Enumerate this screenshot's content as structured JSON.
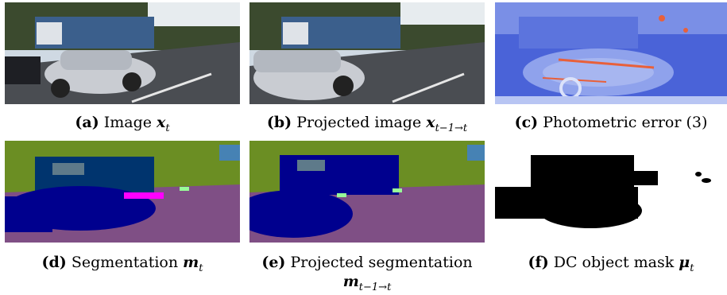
{
  "figure": {
    "panels": [
      {
        "id": "a",
        "tag": "(a)",
        "text": "Image",
        "math": "x",
        "subscript": "t"
      },
      {
        "id": "b",
        "tag": "(b)",
        "text": "Projected image",
        "math": "x",
        "subscript": "t−1→t"
      },
      {
        "id": "c",
        "tag": "(c)",
        "text": "Photometric error (3)",
        "math": "",
        "subscript": ""
      },
      {
        "id": "d",
        "tag": "(d)",
        "text": "Segmentation",
        "math": "m",
        "subscript": "t"
      },
      {
        "id": "e",
        "tag": "(e)",
        "text": "Projected segmentation",
        "math": "m",
        "subscript": "t−1→t"
      },
      {
        "id": "f",
        "tag": "(f)",
        "text": "DC object mask",
        "math": "μ",
        "subscript": "t"
      }
    ]
  },
  "colors": {
    "sky": "#c9d6e2",
    "trees": "#3b4a2e",
    "road": "#4a4d52",
    "truck": "#3b5f8c",
    "car": "#c9ccd2",
    "error_bg": "#4a63d8",
    "error_hot": "#e8603a",
    "seg_vegetation": "#6b8e23",
    "seg_road": "#7f4f85",
    "seg_car": "#00008e",
    "seg_truck": "#00346e",
    "seg_sky": "#4682b4",
    "seg_pink": "#ff00ff",
    "seg_light": "#98fb98",
    "mask_fg": "#000000",
    "mask_bg": "#ffffff"
  }
}
